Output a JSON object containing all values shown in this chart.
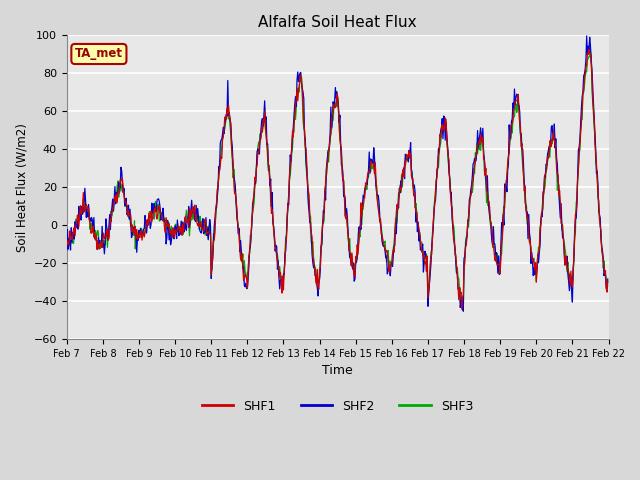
{
  "title": "Alfalfa Soil Heat Flux",
  "xlabel": "Time",
  "ylabel": "Soil Heat Flux (W/m2)",
  "ylim": [
    -60,
    100
  ],
  "background_color": "#d8d8d8",
  "plot_bg_color": "#e8e8e8",
  "grid_color": "white",
  "shf1_color": "#cc0000",
  "shf2_color": "#0000cc",
  "shf3_color": "#00aa00",
  "annotation_text": "TA_met",
  "annotation_fg": "#990000",
  "annotation_bg": "#ffffaa",
  "annotation_edge": "#aa0000",
  "tick_labels": [
    "Feb 7",
    "Feb 8",
    "Feb 9",
    "Feb 10",
    "Feb 11",
    "Feb 12",
    "Feb 13",
    "Feb 14",
    "Feb 15",
    "Feb 16",
    "Feb 17",
    "Feb 18",
    "Feb 19",
    "Feb 20",
    "Feb 21",
    "Feb 22"
  ],
  "yticks": [
    -60,
    -40,
    -20,
    0,
    20,
    40,
    60,
    80,
    100
  ]
}
